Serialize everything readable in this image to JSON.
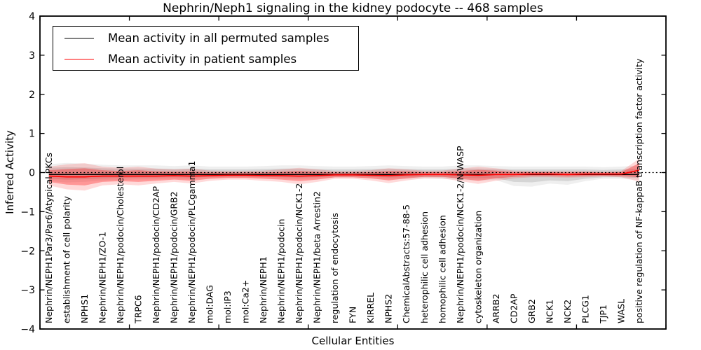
{
  "chart_data": {
    "type": "line",
    "title": "Nephrin/Neph1 signaling in the kidney podocyte -- 468 samples",
    "xlabel": "Cellular Entities",
    "ylabel": "Inferred Activity",
    "ylim": [
      -4,
      4
    ],
    "yticks": [
      "4",
      "3",
      "2",
      "1",
      "0",
      "−1",
      "−2",
      "−3",
      "−4"
    ],
    "ytick_values": [
      4,
      3,
      2,
      1,
      0,
      -1,
      -2,
      -3,
      -4
    ],
    "xtick_interval": 5,
    "grid": false,
    "legend_position": "upper left",
    "legend": {
      "entries": [
        {
          "label": "Mean activity in all permuted samples",
          "color": "#000000"
        },
        {
          "label": "Mean activity in patient samples",
          "color": "#ff0000"
        }
      ]
    },
    "zero_line": {
      "style": "dotted",
      "color": "#000000",
      "value": 0
    },
    "categories": [
      "Nephrin/NEPH1Par3/Par6/Atypical PKCs",
      "establishment of cell polarity",
      "NPHS1",
      "Nephrin/NEPH1/ZO-1",
      "Nephrin/NEPH1/podocin/Cholesterol",
      "TRPC6",
      "Nephrin/NEPH1/podocin/CD2AP",
      "Nephrin/NEPH1/podocin/GRB2",
      "Nephrin/NEPH1/podocin/PLCgamma1",
      "mol:DAG",
      "mol:IP3",
      "mol:Ca2+",
      "Nephrin/NEPH1",
      "Nephrin/NEPH1/podocin",
      "Nephrin/NEPH1/podocin/NCK1-2",
      "Nephrin/NEPH1/beta Arrestin2",
      "regulation of endocytosis",
      "FYN",
      "KIRREL",
      "NPHS2",
      "ChemicalAbstracts:57-88-5",
      "heterophilic cell adhesion",
      "homophilic cell adhesion",
      "Nephrin/NEPH1/podocin/NCK1-2/N-WASP",
      "cytoskeleton organization",
      "ARRB2",
      "CD2AP",
      "GRB2",
      "NCK1",
      "NCK2",
      "PLCG1",
      "TJP1",
      "WASL",
      "positive regulation of NF-kappaB transcription factor activity"
    ],
    "series": [
      {
        "name": "Mean activity in all permuted samples",
        "color": "#000000",
        "values": [
          -0.05,
          -0.05,
          -0.05,
          -0.05,
          -0.05,
          -0.05,
          -0.05,
          -0.05,
          -0.05,
          -0.05,
          -0.05,
          -0.05,
          -0.05,
          -0.05,
          -0.05,
          -0.05,
          -0.05,
          -0.05,
          -0.05,
          -0.05,
          -0.05,
          -0.05,
          -0.05,
          -0.05,
          -0.05,
          -0.05,
          -0.05,
          -0.05,
          -0.05,
          -0.05,
          -0.05,
          -0.05,
          -0.05,
          -0.05
        ],
        "band_upper": [
          0.12,
          0.14,
          0.13,
          0.11,
          0.1,
          0.1,
          0.1,
          0.09,
          0.1,
          0.08,
          0.08,
          0.08,
          0.09,
          0.1,
          0.1,
          0.09,
          0.08,
          0.08,
          0.09,
          0.1,
          0.09,
          0.08,
          0.08,
          0.1,
          0.1,
          0.09,
          0.08,
          0.08,
          0.08,
          0.08,
          0.08,
          0.07,
          0.08,
          0.1
        ],
        "band_lower": [
          -0.16,
          -0.18,
          -0.17,
          -0.15,
          -0.14,
          -0.13,
          -0.13,
          -0.12,
          -0.13,
          -0.11,
          -0.1,
          -0.1,
          -0.11,
          -0.12,
          -0.13,
          -0.12,
          -0.1,
          -0.1,
          -0.11,
          -0.13,
          -0.12,
          -0.11,
          -0.12,
          -0.14,
          -0.15,
          -0.14,
          -0.24,
          -0.25,
          -0.2,
          -0.22,
          -0.16,
          -0.12,
          -0.12,
          -0.14
        ]
      },
      {
        "name": "Mean activity in patient samples",
        "color": "#ff0000",
        "values": [
          -0.09,
          -0.11,
          -0.11,
          -0.09,
          -0.09,
          -0.09,
          -0.09,
          -0.08,
          -0.09,
          -0.08,
          -0.07,
          -0.07,
          -0.08,
          -0.08,
          -0.09,
          -0.08,
          -0.06,
          -0.06,
          -0.07,
          -0.08,
          -0.06,
          -0.05,
          -0.05,
          -0.06,
          -0.07,
          -0.05,
          -0.05,
          -0.04,
          -0.04,
          -0.05,
          -0.04,
          -0.04,
          -0.04,
          0.06
        ],
        "band_inner_halfwidth": [
          0.15,
          0.2,
          0.22,
          0.15,
          0.13,
          0.15,
          0.12,
          0.1,
          0.12,
          0.08,
          0.07,
          0.07,
          0.08,
          0.1,
          0.13,
          0.1,
          0.06,
          0.06,
          0.08,
          0.12,
          0.09,
          0.06,
          0.06,
          0.1,
          0.14,
          0.1,
          0.06,
          0.05,
          0.05,
          0.05,
          0.05,
          0.04,
          0.05,
          0.18
        ],
        "band_outer_halfwidth": [
          0.24,
          0.32,
          0.35,
          0.24,
          0.21,
          0.24,
          0.19,
          0.16,
          0.19,
          0.13,
          0.11,
          0.11,
          0.13,
          0.16,
          0.21,
          0.16,
          0.1,
          0.1,
          0.13,
          0.19,
          0.14,
          0.1,
          0.1,
          0.16,
          0.22,
          0.16,
          0.1,
          0.08,
          0.08,
          0.08,
          0.08,
          0.06,
          0.08,
          0.29
        ]
      }
    ]
  }
}
